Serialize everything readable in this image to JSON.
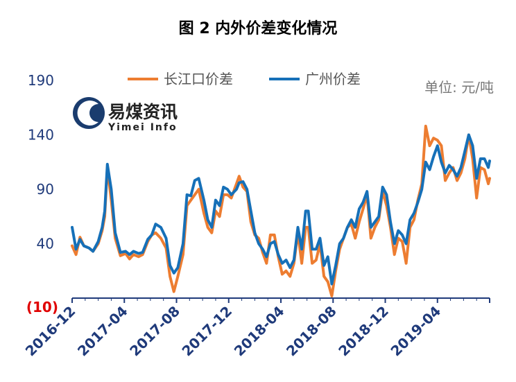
{
  "chart_data": {
    "type": "line",
    "title": "图 2  内外价差变化情况",
    "unit_label": "单位:  元/吨",
    "ylim": [
      -10,
      190
    ],
    "yticks": [
      190,
      140,
      90,
      40
    ],
    "ytick_negative_label": "(10)",
    "ytick_negative_value": -10,
    "xlim": [
      0,
      32
    ],
    "xticks": [
      {
        "label": "2016-12",
        "x": 0
      },
      {
        "label": "2017-04",
        "x": 4
      },
      {
        "label": "2017-08",
        "x": 8
      },
      {
        "label": "2017-12",
        "x": 12
      },
      {
        "label": "2018-04",
        "x": 16
      },
      {
        "label": "2018-08",
        "x": 20
      },
      {
        "label": "2018-12",
        "x": 24
      },
      {
        "label": "2019-04",
        "x": 28
      }
    ],
    "legend_placement": "top-center",
    "series": [
      {
        "name": "长江口价差",
        "color": "#ed7d31",
        "points": [
          [
            0,
            38
          ],
          [
            0.3,
            30
          ],
          [
            0.6,
            46
          ],
          [
            0.9,
            38
          ],
          [
            1.3,
            36
          ],
          [
            1.6,
            33
          ],
          [
            2.0,
            40
          ],
          [
            2.3,
            52
          ],
          [
            2.5,
            65
          ],
          [
            2.7,
            110
          ],
          [
            3.0,
            80
          ],
          [
            3.3,
            45
          ],
          [
            3.7,
            29
          ],
          [
            4.1,
            31
          ],
          [
            4.4,
            26
          ],
          [
            4.7,
            30
          ],
          [
            5.1,
            28
          ],
          [
            5.4,
            30
          ],
          [
            5.8,
            42
          ],
          [
            6.1,
            48
          ],
          [
            6.4,
            50
          ],
          [
            6.8,
            45
          ],
          [
            7.2,
            36
          ],
          [
            7.5,
            10
          ],
          [
            7.8,
            -4
          ],
          [
            8.1,
            10
          ],
          [
            8.5,
            30
          ],
          [
            8.8,
            75
          ],
          [
            9.1,
            80
          ],
          [
            9.4,
            85
          ],
          [
            9.7,
            90
          ],
          [
            10.1,
            68
          ],
          [
            10.4,
            55
          ],
          [
            10.7,
            50
          ],
          [
            11.0,
            70
          ],
          [
            11.3,
            65
          ],
          [
            11.6,
            85
          ],
          [
            11.9,
            85
          ],
          [
            12.2,
            82
          ],
          [
            12.6,
            95
          ],
          [
            12.8,
            102
          ],
          [
            13.1,
            92
          ],
          [
            13.4,
            88
          ],
          [
            13.7,
            60
          ],
          [
            14.0,
            48
          ],
          [
            14.3,
            45
          ],
          [
            14.6,
            32
          ],
          [
            14.9,
            22
          ],
          [
            15.2,
            48
          ],
          [
            15.5,
            48
          ],
          [
            15.8,
            28
          ],
          [
            16.1,
            12
          ],
          [
            16.4,
            15
          ],
          [
            16.7,
            10
          ],
          [
            17.0,
            22
          ],
          [
            17.3,
            50
          ],
          [
            17.6,
            22
          ],
          [
            17.9,
            55
          ],
          [
            18.1,
            55
          ],
          [
            18.4,
            22
          ],
          [
            18.7,
            25
          ],
          [
            19.0,
            40
          ],
          [
            19.3,
            10
          ],
          [
            19.6,
            5
          ],
          [
            19.9,
            -8
          ],
          [
            20.2,
            15
          ],
          [
            20.5,
            35
          ],
          [
            20.8,
            45
          ],
          [
            21.1,
            55
          ],
          [
            21.4,
            58
          ],
          [
            21.7,
            45
          ],
          [
            22.0,
            60
          ],
          [
            22.3,
            72
          ],
          [
            22.6,
            85
          ],
          [
            22.9,
            45
          ],
          [
            23.2,
            55
          ],
          [
            23.5,
            62
          ],
          [
            23.8,
            88
          ],
          [
            24.1,
            75
          ],
          [
            24.4,
            55
          ],
          [
            24.7,
            30
          ],
          [
            25.0,
            45
          ],
          [
            25.3,
            42
          ],
          [
            25.6,
            22
          ],
          [
            25.9,
            55
          ],
          [
            26.2,
            62
          ],
          [
            26.5,
            80
          ],
          [
            26.8,
            95
          ],
          [
            27.1,
            148
          ],
          [
            27.4,
            130
          ],
          [
            27.7,
            137
          ],
          [
            28.0,
            135
          ],
          [
            28.3,
            130
          ],
          [
            28.6,
            98
          ],
          [
            28.9,
            105
          ],
          [
            29.2,
            110
          ],
          [
            29.5,
            98
          ],
          [
            29.8,
            105
          ],
          [
            30.1,
            118
          ],
          [
            30.4,
            140
          ],
          [
            30.7,
            118
          ],
          [
            31.0,
            82
          ],
          [
            31.3,
            110
          ],
          [
            31.6,
            108
          ],
          [
            31.9,
            95
          ],
          [
            32.0,
            100
          ]
        ]
      },
      {
        "name": "广州价差",
        "color": "#1670b8",
        "points": [
          [
            0,
            55
          ],
          [
            0.3,
            35
          ],
          [
            0.6,
            44
          ],
          [
            0.9,
            38
          ],
          [
            1.3,
            36
          ],
          [
            1.6,
            33
          ],
          [
            2.0,
            42
          ],
          [
            2.3,
            55
          ],
          [
            2.5,
            70
          ],
          [
            2.7,
            113
          ],
          [
            3.0,
            90
          ],
          [
            3.3,
            50
          ],
          [
            3.7,
            32
          ],
          [
            4.1,
            33
          ],
          [
            4.4,
            30
          ],
          [
            4.7,
            33
          ],
          [
            5.1,
            31
          ],
          [
            5.4,
            32
          ],
          [
            5.8,
            44
          ],
          [
            6.1,
            48
          ],
          [
            6.4,
            58
          ],
          [
            6.8,
            55
          ],
          [
            7.2,
            45
          ],
          [
            7.5,
            20
          ],
          [
            7.8,
            13
          ],
          [
            8.1,
            18
          ],
          [
            8.5,
            40
          ],
          [
            8.8,
            85
          ],
          [
            9.1,
            84
          ],
          [
            9.4,
            98
          ],
          [
            9.7,
            100
          ],
          [
            10.1,
            80
          ],
          [
            10.4,
            62
          ],
          [
            10.7,
            55
          ],
          [
            11.0,
            80
          ],
          [
            11.3,
            75
          ],
          [
            11.6,
            92
          ],
          [
            11.9,
            90
          ],
          [
            12.2,
            85
          ],
          [
            12.6,
            90
          ],
          [
            12.8,
            96
          ],
          [
            13.1,
            97
          ],
          [
            13.4,
            90
          ],
          [
            13.7,
            70
          ],
          [
            14.0,
            50
          ],
          [
            14.3,
            40
          ],
          [
            14.6,
            35
          ],
          [
            14.9,
            28
          ],
          [
            15.2,
            40
          ],
          [
            15.5,
            42
          ],
          [
            15.8,
            30
          ],
          [
            16.1,
            22
          ],
          [
            16.4,
            25
          ],
          [
            16.7,
            18
          ],
          [
            17.0,
            25
          ],
          [
            17.3,
            55
          ],
          [
            17.6,
            35
          ],
          [
            17.9,
            70
          ],
          [
            18.1,
            70
          ],
          [
            18.4,
            35
          ],
          [
            18.7,
            35
          ],
          [
            19.0,
            45
          ],
          [
            19.3,
            20
          ],
          [
            19.6,
            28
          ],
          [
            19.9,
            3
          ],
          [
            20.2,
            20
          ],
          [
            20.5,
            40
          ],
          [
            20.8,
            45
          ],
          [
            21.1,
            55
          ],
          [
            21.4,
            62
          ],
          [
            21.7,
            55
          ],
          [
            22.0,
            72
          ],
          [
            22.3,
            78
          ],
          [
            22.6,
            88
          ],
          [
            22.9,
            55
          ],
          [
            23.2,
            60
          ],
          [
            23.5,
            65
          ],
          [
            23.8,
            92
          ],
          [
            24.1,
            85
          ],
          [
            24.4,
            60
          ],
          [
            24.7,
            40
          ],
          [
            25.0,
            52
          ],
          [
            25.3,
            48
          ],
          [
            25.6,
            40
          ],
          [
            25.9,
            62
          ],
          [
            26.2,
            68
          ],
          [
            26.5,
            78
          ],
          [
            26.8,
            90
          ],
          [
            27.1,
            115
          ],
          [
            27.4,
            108
          ],
          [
            27.7,
            120
          ],
          [
            28.0,
            130
          ],
          [
            28.3,
            115
          ],
          [
            28.6,
            105
          ],
          [
            28.9,
            112
          ],
          [
            29.2,
            108
          ],
          [
            29.5,
            102
          ],
          [
            29.8,
            110
          ],
          [
            30.1,
            125
          ],
          [
            30.4,
            140
          ],
          [
            30.7,
            130
          ],
          [
            31.0,
            100
          ],
          [
            31.3,
            118
          ],
          [
            31.6,
            118
          ],
          [
            31.9,
            110
          ],
          [
            32.0,
            116
          ]
        ]
      }
    ]
  },
  "logo": {
    "text_cn": "易煤资讯",
    "text_en": "Yimei Info"
  }
}
